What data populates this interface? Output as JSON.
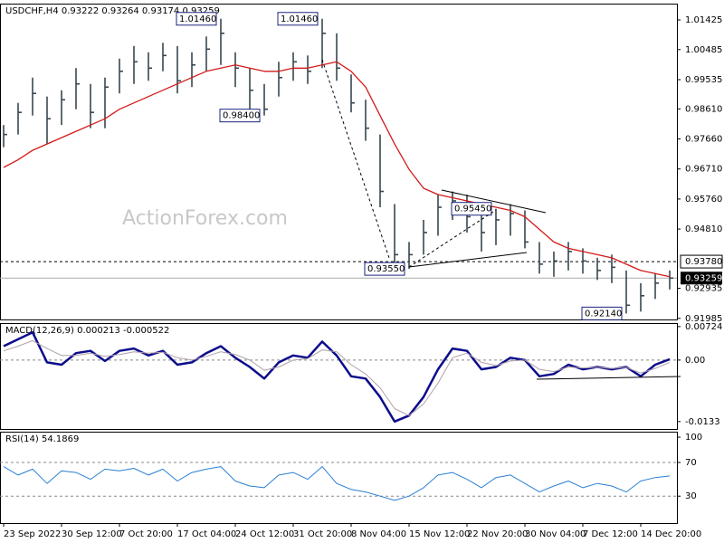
{
  "chart_data": [
    {
      "type": "ohlc",
      "title": "USDCHF,H4  0.93222 0.93264 0.93174 0.93259",
      "watermark": "ActionForex.com",
      "color": "#37474f",
      "high": [
        0.981,
        0.988,
        0.996,
        0.99,
        0.992,
        0.999,
        0.994,
        0.996,
        1.002,
        1.006,
        1.004,
        1.007,
        1.006,
        1.004,
        1.009,
        1.0146,
        1.004,
        0.999,
        0.994,
        1.001,
        1.004,
        1.003,
        1.0146,
        1.01,
        0.997,
        0.989,
        0.978,
        0.956,
        0.944,
        0.951,
        0.959,
        0.96,
        0.959,
        0.953,
        0.9545,
        0.956,
        0.954,
        0.944,
        0.941,
        0.944,
        0.942,
        0.939,
        0.94,
        0.935,
        0.931,
        0.934,
        0.935
      ],
      "low": [
        0.974,
        0.978,
        0.984,
        0.975,
        0.981,
        0.986,
        0.98,
        0.98,
        0.991,
        0.994,
        0.995,
        0.998,
        0.991,
        0.993,
        0.998,
        1.0,
        0.993,
        0.986,
        0.984,
        0.99,
        0.995,
        0.994,
        0.999,
        0.995,
        0.985,
        0.976,
        0.955,
        0.936,
        0.9355,
        0.94,
        0.946,
        0.951,
        0.947,
        0.941,
        0.943,
        0.946,
        0.942,
        0.934,
        0.933,
        0.935,
        0.934,
        0.932,
        0.931,
        0.9214,
        0.922,
        0.926,
        0.929
      ],
      "close": [
        0.978,
        0.985,
        0.991,
        0.983,
        0.989,
        0.994,
        0.985,
        0.993,
        0.998,
        1.001,
        0.999,
        1.003,
        0.995,
        1.0,
        1.005,
        1.01,
        0.999,
        0.992,
        0.986,
        0.996,
        1.001,
        0.998,
        1.01,
        0.999,
        0.988,
        0.98,
        0.96,
        0.94,
        0.94,
        0.947,
        0.955,
        0.957,
        0.952,
        0.947,
        0.951,
        0.953,
        0.944,
        0.937,
        0.938,
        0.941,
        0.938,
        0.935,
        0.936,
        0.924,
        0.927,
        0.931,
        0.9326
      ],
      "lines": [
        {
          "color": "#d41a1a",
          "values": [
            0.9676,
            0.97,
            0.973,
            0.975,
            0.977,
            0.979,
            0.981,
            0.983,
            0.986,
            0.988,
            0.99,
            0.992,
            0.994,
            0.996,
            0.998,
            0.999,
            1.0,
            0.999,
            0.998,
            0.998,
            0.999,
            0.999,
            1.0,
            1.001,
            0.998,
            0.993,
            0.984,
            0.975,
            0.967,
            0.961,
            0.959,
            0.958,
            0.957,
            0.956,
            0.955,
            0.954,
            0.952,
            0.948,
            0.944,
            0.942,
            0.941,
            0.94,
            0.939,
            0.937,
            0.935,
            0.934,
            0.933
          ]
        }
      ],
      "annotations": [
        {
          "value": 1.0146,
          "label": "1.01460",
          "x": 15
        },
        {
          "value": 0.984,
          "label": "0.98400",
          "x": 18
        },
        {
          "value": 1.0146,
          "label": "1.01460",
          "x": 22
        },
        {
          "value": 0.9545,
          "label": "0.95450",
          "x": 34
        },
        {
          "value": 0.9355,
          "label": "0.93550",
          "x": 28
        },
        {
          "value": 0.9214,
          "label": "0.92140",
          "x": 43
        }
      ],
      "hline": {
        "value": 0.9378,
        "label": "0.93780"
      },
      "last": {
        "value": 0.93259,
        "label": "0.93259"
      },
      "xlim": [
        -0.25,
        46.5
      ],
      "ylim": [
        0.9195,
        1.0194
      ],
      "yticks": [
        1.01425,
        1.00485,
        0.99535,
        {
          "value": 0.9861,
          "label": "0.98610"
        },
        {
          "value": 0.9766,
          "label": "0.97660"
        },
        {
          "value": 0.9671,
          "label": "0.96710"
        },
        {
          "value": 0.9576,
          "label": "0.95760"
        },
        {
          "value": 0.9481,
          "label": "0.94810"
        },
        0.92935,
        0.91985
      ]
    },
    {
      "type": "line",
      "title": "MACD(12,26,9) 0.000213 -0.000522",
      "series": [
        {
          "color": "#0c0c8c",
          "width": 2.5,
          "values": [
            0.003,
            0.0045,
            0.006,
            -0.0005,
            -0.001,
            0.0015,
            0.002,
            -0.0002,
            0.002,
            0.0025,
            0.001,
            0.002,
            -0.001,
            -0.0005,
            0.0015,
            0.003,
            0.0005,
            -0.0015,
            -0.004,
            -0.0005,
            0.001,
            0.0005,
            0.004,
            0.001,
            -0.0035,
            -0.004,
            -0.008,
            -0.0133,
            -0.012,
            -0.008,
            -0.002,
            0.0025,
            0.002,
            -0.002,
            -0.0015,
            0.0005,
            0.0,
            -0.0035,
            -0.003,
            -0.001,
            -0.002,
            -0.0015,
            -0.002,
            -0.0015,
            -0.0035,
            -0.001,
            0.0002
          ]
        },
        {
          "color": "#b0a0a8",
          "width": 1,
          "values": [
            0.002,
            0.003,
            0.0042,
            0.0025,
            0.001,
            0.001,
            0.0015,
            0.0008,
            0.0012,
            0.0018,
            0.0015,
            0.0017,
            0.0005,
            0.0,
            0.0008,
            0.0018,
            0.0012,
            0.0,
            -0.0022,
            -0.0015,
            0.0,
            0.0003,
            0.0022,
            0.0018,
            -0.001,
            -0.003,
            -0.006,
            -0.0105,
            -0.012,
            -0.0095,
            -0.005,
            0.0005,
            0.0015,
            -0.0005,
            -0.0012,
            -0.0002,
            0.0,
            -0.002,
            -0.0025,
            -0.0015,
            -0.0017,
            -0.0016,
            -0.0018,
            -0.0016,
            -0.0028,
            -0.0018,
            -0.0005
          ]
        }
      ],
      "levels": [
        0
      ],
      "xlim": [
        -0.25,
        46.5
      ],
      "ylim": [
        -0.0149,
        0.008
      ],
      "yticks": [
        0.00724,
        {
          "value": 0,
          "label": "0.00"
        },
        -0.0133
      ]
    },
    {
      "type": "line",
      "title": "RSI(14) 54.1869",
      "series": [
        {
          "color": "#2a7fd4",
          "width": 1,
          "values": [
            65,
            55,
            62,
            45,
            60,
            58,
            50,
            62,
            60,
            63,
            55,
            62,
            48,
            58,
            62,
            65,
            48,
            42,
            40,
            55,
            58,
            50,
            65,
            45,
            38,
            35,
            30,
            25,
            30,
            40,
            55,
            58,
            50,
            40,
            52,
            55,
            45,
            35,
            42,
            48,
            40,
            45,
            42,
            35,
            48,
            52,
            54
          ]
        }
      ],
      "levels": [
        70,
        30
      ],
      "xlim": [
        -0.25,
        46.5
      ],
      "ylim": [
        -2,
        106.5
      ],
      "yticks": [
        100,
        70,
        30
      ],
      "xticks": [
        {
          "value": 0,
          "label": "23 Sep 2022"
        },
        {
          "value": 4,
          "label": "30 Sep 12:00"
        },
        {
          "value": 8,
          "label": "7 Oct 20:00"
        },
        {
          "value": 12,
          "label": "17 Oct 04:00"
        },
        {
          "value": 16,
          "label": "24 Oct 12:00"
        },
        {
          "value": 20,
          "label": "31 Oct 20:00"
        },
        {
          "value": 24,
          "label": "8 Nov 04:00"
        },
        {
          "value": 28,
          "label": "15 Nov 12:00"
        },
        {
          "value": 32,
          "label": "22 Nov 20:00"
        },
        {
          "value": 36,
          "label": "30 Nov 04:00"
        },
        {
          "value": 40,
          "label": "7 Dec 12:00"
        },
        {
          "value": 44,
          "label": "14 Dec 20:00"
        }
      ]
    }
  ]
}
